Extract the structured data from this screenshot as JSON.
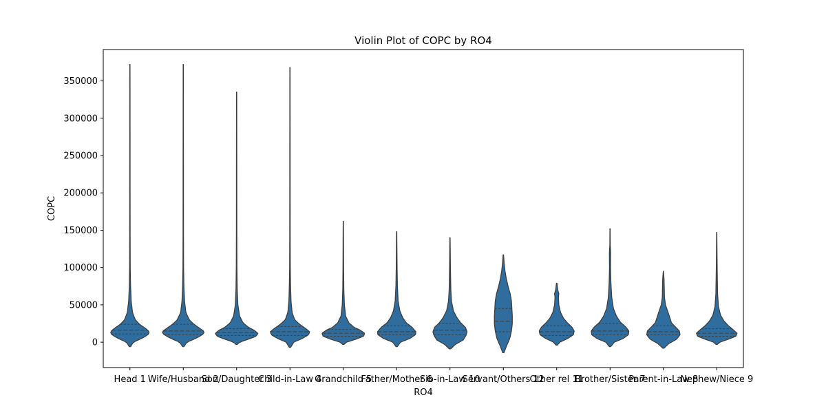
{
  "chart_data": {
    "type": "violin",
    "title": "Violin Plot of COPC by RO4",
    "xlabel": "RO4",
    "ylabel": "COPC",
    "categories": [
      "Head 1",
      "Wife/Husband 2",
      "Son/Daughter 3",
      "Child-in-Law 4",
      "Grandchild 5",
      "Father/Mother 6",
      "Sib-in-Law 10",
      "Servant/Others 12",
      "Other rel 11",
      "Brother/Sister 7",
      "Parent-in-Law 8",
      "Nephew/Niece 9"
    ],
    "yticks": [
      0,
      50000,
      100000,
      150000,
      200000,
      250000,
      300000,
      350000
    ],
    "ytick_labels": [
      "0",
      "50000",
      "100000",
      "150000",
      "200000",
      "250000",
      "300000",
      "350000"
    ],
    "ylim": [
      -34000,
      392000
    ],
    "color": "#2f6d9e",
    "edge_color": "#3f3f3f",
    "grid": false,
    "inner": "quartile",
    "series": [
      {
        "category": "Head 1",
        "min": -6000,
        "max": 372000,
        "q1": 11000,
        "median": 16000,
        "q3": 24000,
        "profile": [
          [
            -6000,
            0.03
          ],
          [
            0,
            0.16
          ],
          [
            5000,
            0.55
          ],
          [
            10000,
            0.85
          ],
          [
            14000,
            0.92
          ],
          [
            18000,
            0.75
          ],
          [
            24000,
            0.45
          ],
          [
            30000,
            0.25
          ],
          [
            40000,
            0.12
          ],
          [
            55000,
            0.06
          ],
          [
            75000,
            0.03
          ],
          [
            100000,
            0.015
          ],
          [
            150000,
            0.01
          ],
          [
            250000,
            0.008
          ],
          [
            372000,
            0.005
          ]
        ]
      },
      {
        "category": "Wife/Husband 2",
        "min": -6000,
        "max": 372000,
        "q1": 10000,
        "median": 15000,
        "q3": 24000,
        "profile": [
          [
            -6000,
            0.03
          ],
          [
            0,
            0.17
          ],
          [
            5000,
            0.58
          ],
          [
            10000,
            0.9
          ],
          [
            14000,
            1.0
          ],
          [
            18000,
            0.8
          ],
          [
            24000,
            0.5
          ],
          [
            30000,
            0.28
          ],
          [
            40000,
            0.12
          ],
          [
            55000,
            0.06
          ],
          [
            75000,
            0.03
          ],
          [
            100000,
            0.015
          ],
          [
            150000,
            0.01
          ],
          [
            250000,
            0.008
          ],
          [
            372000,
            0.005
          ]
        ]
      },
      {
        "category": "Son/Daughter 3",
        "min": -3000,
        "max": 335000,
        "q1": 9000,
        "median": 13000,
        "q3": 18000,
        "profile": [
          [
            -3000,
            0.03
          ],
          [
            0,
            0.14
          ],
          [
            4000,
            0.55
          ],
          [
            8000,
            0.92
          ],
          [
            12000,
            1.0
          ],
          [
            16000,
            0.82
          ],
          [
            20000,
            0.55
          ],
          [
            26000,
            0.3
          ],
          [
            35000,
            0.14
          ],
          [
            50000,
            0.06
          ],
          [
            70000,
            0.03
          ],
          [
            100000,
            0.015
          ],
          [
            150000,
            0.01
          ],
          [
            250000,
            0.008
          ],
          [
            335000,
            0.005
          ]
        ]
      },
      {
        "category": "Child-in-Law 4",
        "min": -7000,
        "max": 368000,
        "q1": 9000,
        "median": 14000,
        "q3": 21000,
        "profile": [
          [
            -7000,
            0.03
          ],
          [
            0,
            0.18
          ],
          [
            5000,
            0.58
          ],
          [
            10000,
            0.88
          ],
          [
            14000,
            0.92
          ],
          [
            18000,
            0.75
          ],
          [
            24000,
            0.45
          ],
          [
            30000,
            0.22
          ],
          [
            40000,
            0.1
          ],
          [
            55000,
            0.05
          ],
          [
            75000,
            0.03
          ],
          [
            100000,
            0.015
          ],
          [
            150000,
            0.01
          ],
          [
            250000,
            0.008
          ],
          [
            368000,
            0.005
          ]
        ]
      },
      {
        "category": "Grandchild 5",
        "min": -3000,
        "max": 162000,
        "q1": 8000,
        "median": 12000,
        "q3": 17000,
        "profile": [
          [
            -3000,
            0.03
          ],
          [
            0,
            0.15
          ],
          [
            4000,
            0.6
          ],
          [
            8000,
            0.95
          ],
          [
            12000,
            1.0
          ],
          [
            16000,
            0.8
          ],
          [
            20000,
            0.5
          ],
          [
            26000,
            0.26
          ],
          [
            35000,
            0.11
          ],
          [
            50000,
            0.05
          ],
          [
            70000,
            0.025
          ],
          [
            100000,
            0.015
          ],
          [
            162000,
            0.006
          ]
        ]
      },
      {
        "category": "Father/Mother 6",
        "min": -6000,
        "max": 148000,
        "q1": 10000,
        "median": 14000,
        "q3": 22000,
        "profile": [
          [
            -6000,
            0.03
          ],
          [
            0,
            0.18
          ],
          [
            5000,
            0.62
          ],
          [
            10000,
            0.88
          ],
          [
            14000,
            0.9
          ],
          [
            20000,
            0.72
          ],
          [
            26000,
            0.45
          ],
          [
            33000,
            0.28
          ],
          [
            42000,
            0.15
          ],
          [
            55000,
            0.07
          ],
          [
            75000,
            0.035
          ],
          [
            100000,
            0.02
          ],
          [
            148000,
            0.006
          ]
        ]
      },
      {
        "category": "Sib-in-Law 10",
        "min": -9000,
        "max": 140000,
        "q1": 10000,
        "median": 16000,
        "q3": 25000,
        "profile": [
          [
            -9000,
            0.03
          ],
          [
            -3000,
            0.25
          ],
          [
            3000,
            0.62
          ],
          [
            9000,
            0.75
          ],
          [
            14000,
            0.8
          ],
          [
            20000,
            0.72
          ],
          [
            26000,
            0.5
          ],
          [
            33000,
            0.32
          ],
          [
            42000,
            0.16
          ],
          [
            55000,
            0.07
          ],
          [
            70000,
            0.04
          ],
          [
            100000,
            0.02
          ],
          [
            140000,
            0.006
          ]
        ]
      },
      {
        "category": "Servant/Others 12",
        "min": -14000,
        "max": 117000,
        "q1": 14000,
        "median": 28000,
        "q3": 45000,
        "profile": [
          [
            -14000,
            0.03
          ],
          [
            -5000,
            0.15
          ],
          [
            5000,
            0.3
          ],
          [
            15000,
            0.38
          ],
          [
            25000,
            0.42
          ],
          [
            35000,
            0.42
          ],
          [
            45000,
            0.4
          ],
          [
            55000,
            0.38
          ],
          [
            65000,
            0.32
          ],
          [
            75000,
            0.22
          ],
          [
            85000,
            0.14
          ],
          [
            95000,
            0.08
          ],
          [
            105000,
            0.04
          ],
          [
            117000,
            0.01
          ]
        ]
      },
      {
        "category": "Other rel 11",
        "min": -4000,
        "max": 79000,
        "q1": 9000,
        "median": 14000,
        "q3": 22000,
        "profile": [
          [
            -4000,
            0.03
          ],
          [
            0,
            0.15
          ],
          [
            5000,
            0.52
          ],
          [
            10000,
            0.78
          ],
          [
            15000,
            0.82
          ],
          [
            20000,
            0.72
          ],
          [
            26000,
            0.5
          ],
          [
            32000,
            0.32
          ],
          [
            40000,
            0.18
          ],
          [
            50000,
            0.1
          ],
          [
            60000,
            0.08
          ],
          [
            65000,
            0.1
          ],
          [
            70000,
            0.05
          ],
          [
            79000,
            0.01
          ]
        ]
      },
      {
        "category": "Brother/Sister 7",
        "min": -6000,
        "max": 152000,
        "q1": 10000,
        "median": 15000,
        "q3": 25000,
        "profile": [
          [
            -6000,
            0.03
          ],
          [
            0,
            0.2
          ],
          [
            5000,
            0.62
          ],
          [
            10000,
            0.86
          ],
          [
            15000,
            0.88
          ],
          [
            20000,
            0.75
          ],
          [
            27000,
            0.48
          ],
          [
            35000,
            0.3
          ],
          [
            45000,
            0.16
          ],
          [
            60000,
            0.08
          ],
          [
            80000,
            0.04
          ],
          [
            100000,
            0.025
          ],
          [
            120000,
            0.03
          ],
          [
            130000,
            0.01
          ],
          [
            152000,
            0.005
          ]
        ]
      },
      {
        "category": "Parent-in-Law 8",
        "min": -8000,
        "max": 95000,
        "q1": 10000,
        "median": 14000,
        "q3": 22000,
        "profile": [
          [
            -8000,
            0.03
          ],
          [
            -2000,
            0.25
          ],
          [
            4000,
            0.62
          ],
          [
            10000,
            0.78
          ],
          [
            15000,
            0.75
          ],
          [
            20000,
            0.58
          ],
          [
            26000,
            0.38
          ],
          [
            33000,
            0.3
          ],
          [
            40000,
            0.22
          ],
          [
            50000,
            0.1
          ],
          [
            60000,
            0.05
          ],
          [
            75000,
            0.04
          ],
          [
            85000,
            0.03
          ],
          [
            95000,
            0.005
          ]
        ]
      },
      {
        "category": "Nephew/Niece 9",
        "min": -3000,
        "max": 147000,
        "q1": 8000,
        "median": 12000,
        "q3": 18000,
        "profile": [
          [
            -3000,
            0.03
          ],
          [
            0,
            0.15
          ],
          [
            4000,
            0.55
          ],
          [
            8000,
            0.9
          ],
          [
            12000,
            0.95
          ],
          [
            16000,
            0.8
          ],
          [
            22000,
            0.55
          ],
          [
            28000,
            0.35
          ],
          [
            36000,
            0.18
          ],
          [
            48000,
            0.08
          ],
          [
            65000,
            0.04
          ],
          [
            100000,
            0.02
          ],
          [
            147000,
            0.005
          ]
        ]
      }
    ]
  }
}
